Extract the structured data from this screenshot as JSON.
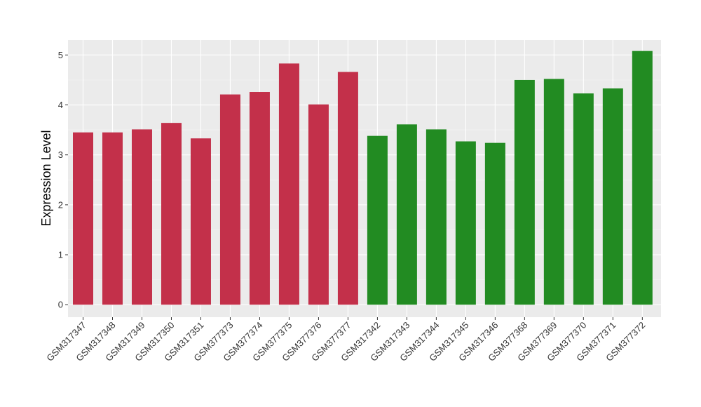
{
  "chart_data": {
    "type": "bar",
    "ylabel": "Expression Level",
    "xlabel": "",
    "title": "",
    "ylim": [
      -0.25,
      5.3
    ],
    "yticks": [
      0,
      1,
      2,
      3,
      4,
      5
    ],
    "grid": true,
    "legend": "none",
    "categories": [
      "GSM317347",
      "GSM317348",
      "GSM317349",
      "GSM317350",
      "GSM317351",
      "GSM377373",
      "GSM377374",
      "GSM377375",
      "GSM377376",
      "GSM377377",
      "GSM317342",
      "GSM317343",
      "GSM317344",
      "GSM317345",
      "GSM317346",
      "GSM377368",
      "GSM377369",
      "GSM377370",
      "GSM377371",
      "GSM377372"
    ],
    "values": [
      3.45,
      3.45,
      3.51,
      3.64,
      3.33,
      4.21,
      4.26,
      4.83,
      4.01,
      4.66,
      3.38,
      3.61,
      3.51,
      3.27,
      3.24,
      4.5,
      4.52,
      4.23,
      4.33,
      5.08
    ],
    "groups": [
      "red",
      "red",
      "red",
      "red",
      "red",
      "red",
      "red",
      "red",
      "red",
      "red",
      "green",
      "green",
      "green",
      "green",
      "green",
      "green",
      "green",
      "green",
      "green",
      "green"
    ],
    "colors": {
      "red": "#c3304a",
      "green": "#228b22",
      "panel_background": "#ebebeb",
      "grid_major": "#ffffff",
      "grid_minor": "#f5f5f5"
    }
  }
}
